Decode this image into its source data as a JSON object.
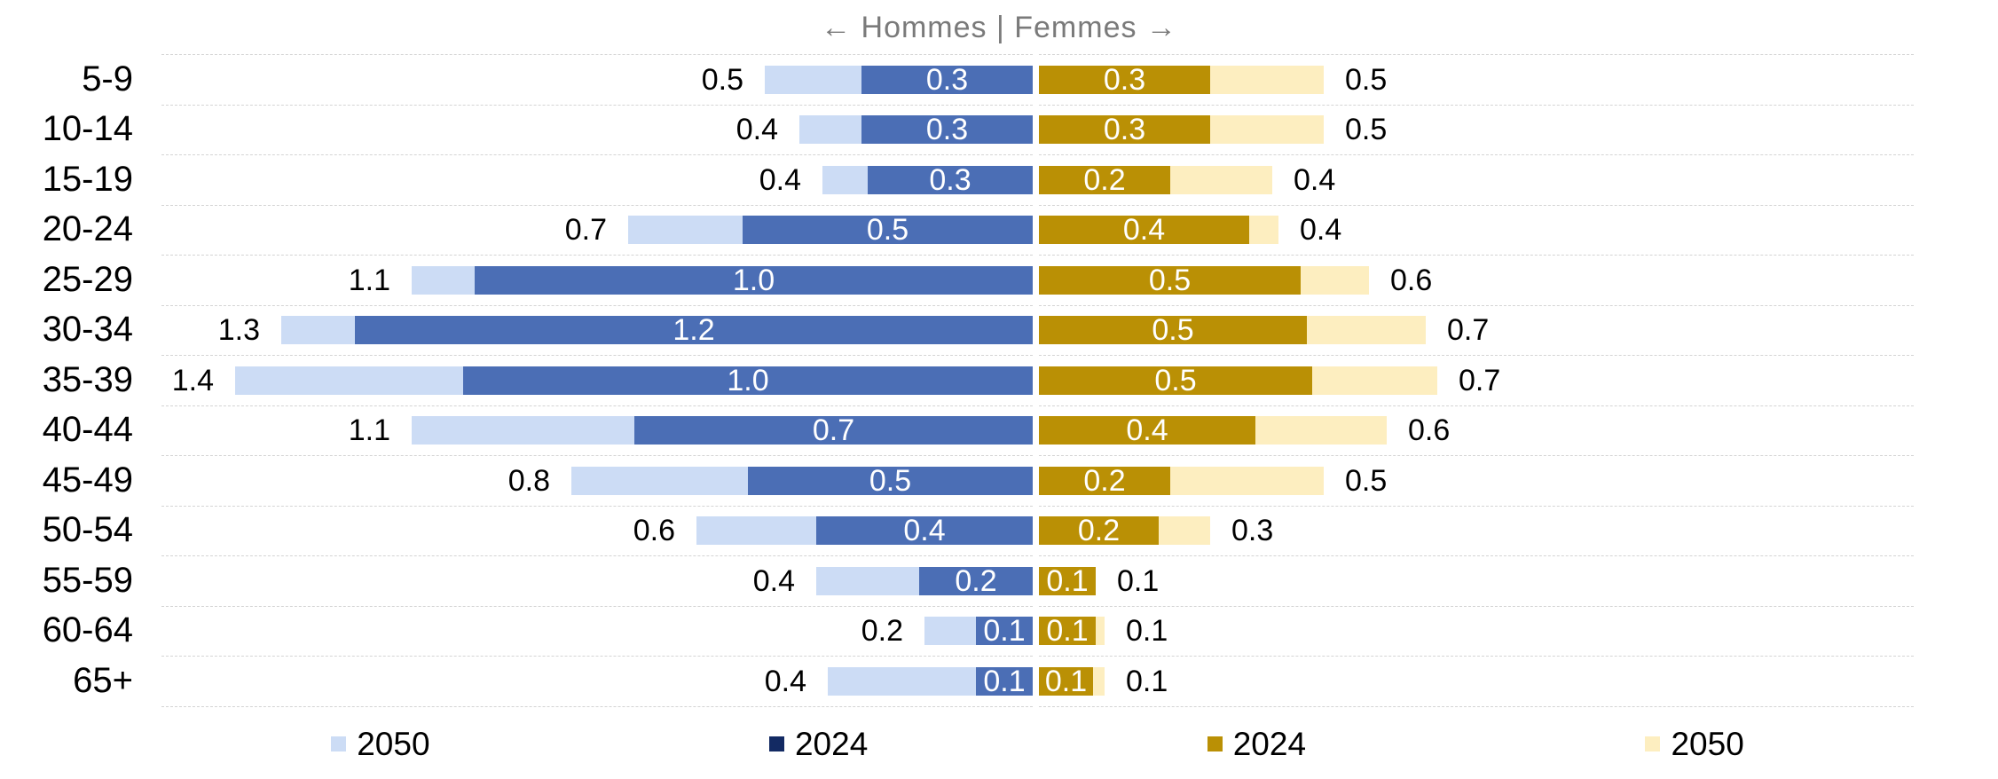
{
  "chart": {
    "title": "← Hommes | Femmes →",
    "legend": [
      {
        "label": "2050",
        "color": "#ccdcf5"
      },
      {
        "label": "2024",
        "color": "#132a63"
      },
      {
        "label": "2024",
        "color": "#ba9005"
      },
      {
        "label": "2050",
        "color": "#fdeec0"
      }
    ]
  },
  "colors": {
    "hommes_2050_bar": "#ccdcf5",
    "hommes_2024_bar": "#4b6eb5",
    "femmes_2024_bar": "#ba9005",
    "femmes_2050_bar": "#fdeec0",
    "gridline": "#d4d4d4",
    "title_text": "#7a7a7a",
    "value_label_outside": "#000000",
    "value_label_inside": "#ffffff"
  },
  "chart_data": {
    "type": "bar",
    "subtype": "population-pyramid",
    "title": "← Hommes | Femmes →",
    "left_header": "Hommes",
    "right_header": "Femmes",
    "categories": [
      "5-9",
      "10-14",
      "15-19",
      "20-24",
      "25-29",
      "30-34",
      "35-39",
      "40-44",
      "45-49",
      "50-54",
      "55-59",
      "60-64",
      "65+"
    ],
    "axis_max": 1.53,
    "grid": true,
    "legend_position": "bottom",
    "series": [
      {
        "name": "Hommes 2050",
        "side": "left",
        "role": "background",
        "color": "#ccdcf5",
        "values": [
          0.5,
          0.4,
          0.4,
          0.7,
          1.1,
          1.3,
          1.4,
          1.1,
          0.8,
          0.6,
          0.4,
          0.2,
          0.4
        ],
        "labels": [
          "0.5",
          "0.4",
          "0.4",
          "0.7",
          "1.1",
          "1.3",
          "1.4",
          "1.1",
          "0.8",
          "0.6",
          "0.4",
          "0.2",
          "0.4"
        ],
        "bar_extents": [
          0.47,
          0.41,
          0.37,
          0.71,
          1.09,
          1.32,
          1.4,
          1.09,
          0.81,
          0.59,
          0.38,
          0.19,
          0.36
        ]
      },
      {
        "name": "Hommes 2024",
        "side": "left",
        "role": "foreground",
        "color": "#4b6eb5",
        "values": [
          0.3,
          0.3,
          0.3,
          0.5,
          1.0,
          1.2,
          1.0,
          0.7,
          0.5,
          0.4,
          0.2,
          0.1,
          0.1
        ],
        "labels": [
          "0.3",
          "0.3",
          "0.3",
          "0.5",
          "1.0",
          "1.2",
          "1.0",
          "0.7",
          "0.5",
          "0.4",
          "0.2",
          "0.1",
          "0.1"
        ],
        "bar_extents": [
          0.3,
          0.3,
          0.29,
          0.51,
          0.98,
          1.19,
          1.0,
          0.7,
          0.5,
          0.38,
          0.2,
          0.1,
          0.1
        ]
      },
      {
        "name": "Femmes 2024",
        "side": "right",
        "role": "foreground",
        "color": "#ba9005",
        "values": [
          0.3,
          0.3,
          0.2,
          0.4,
          0.5,
          0.5,
          0.5,
          0.4,
          0.2,
          0.2,
          0.1,
          0.1,
          0.1
        ],
        "labels": [
          "0.3",
          "0.3",
          "0.2",
          "0.4",
          "0.5",
          "0.5",
          "0.5",
          "0.4",
          "0.2",
          "0.2",
          "0.1",
          "0.1",
          "0.1"
        ],
        "bar_extents": [
          0.3,
          0.3,
          0.23,
          0.37,
          0.46,
          0.47,
          0.48,
          0.38,
          0.23,
          0.21,
          0.1,
          0.1,
          0.095
        ]
      },
      {
        "name": "Femmes 2050",
        "side": "right",
        "role": "background",
        "color": "#fdeec0",
        "values": [
          0.5,
          0.5,
          0.4,
          0.4,
          0.6,
          0.7,
          0.7,
          0.6,
          0.5,
          0.3,
          0.1,
          0.1,
          0.1
        ],
        "labels": [
          "0.5",
          "0.5",
          "0.4",
          "0.4",
          "0.6",
          "0.7",
          "0.7",
          "0.6",
          "0.5",
          "0.3",
          "0.1",
          "0.1",
          "0.1"
        ],
        "bar_extents": [
          0.5,
          0.5,
          0.41,
          0.42,
          0.58,
          0.68,
          0.7,
          0.61,
          0.5,
          0.3,
          0.1,
          0.115,
          0.115
        ]
      }
    ]
  }
}
